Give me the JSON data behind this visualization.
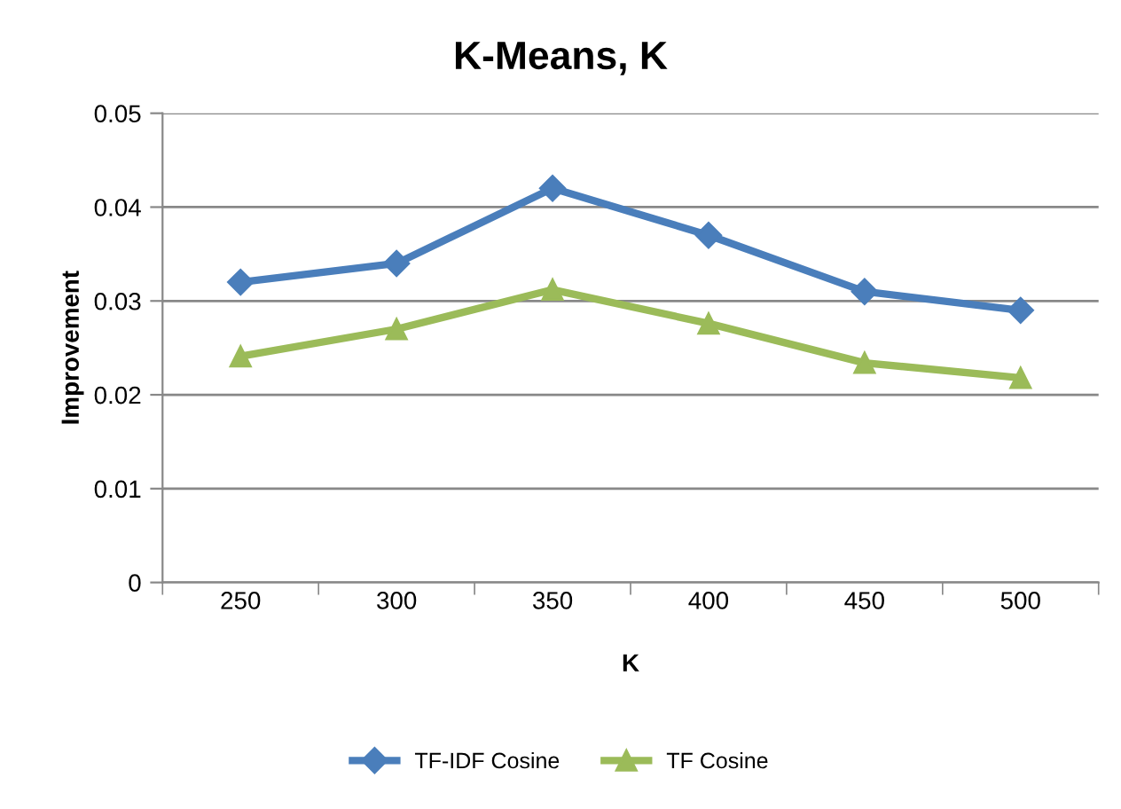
{
  "chart_data": {
    "type": "line",
    "title": "K-Means, K",
    "xlabel": "K",
    "ylabel": "Improvement",
    "categories": [
      "250",
      "300",
      "350",
      "400",
      "450",
      "500"
    ],
    "series": [
      {
        "name": "TF-IDF Cosine",
        "color": "#4a7ebb",
        "marker": "diamond",
        "values": [
          0.032,
          0.034,
          0.042,
          0.037,
          0.031,
          0.029
        ]
      },
      {
        "name": "TF Cosine",
        "color": "#9bbb59",
        "marker": "triangle",
        "values": [
          0.0241,
          0.027,
          0.0312,
          0.0276,
          0.0234,
          0.0218
        ]
      }
    ],
    "ylim": [
      0,
      0.05
    ],
    "yticks": [
      {
        "value": 0,
        "label": "0"
      },
      {
        "value": 0.01,
        "label": "0.01"
      },
      {
        "value": 0.02,
        "label": "0.02"
      },
      {
        "value": 0.03,
        "label": "0.03"
      },
      {
        "value": 0.04,
        "label": "0.04"
      },
      {
        "value": 0.05,
        "label": "0.05"
      }
    ],
    "grid": "y",
    "legend": "bottom"
  }
}
